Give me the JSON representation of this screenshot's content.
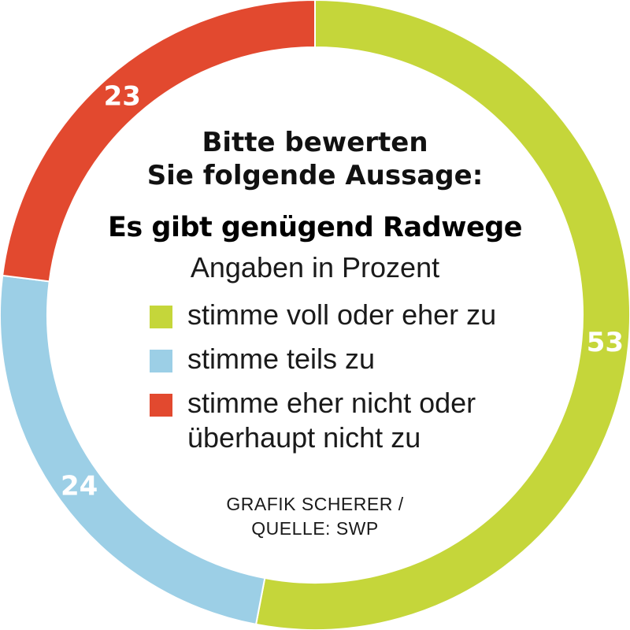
{
  "chart_data": {
    "type": "pie",
    "style": "donut",
    "title_lines": [
      "Bitte bewerten",
      "Sie folgende Aussage:"
    ],
    "subtitle": "Es gibt genügend Radwege",
    "unit_note": "Angaben in Prozent",
    "categories": [
      "stimme voll oder eher zu",
      "stimme teils zu",
      "stimme eher nicht oder überhaupt nicht zu"
    ],
    "values": [
      53,
      24,
      23
    ],
    "value_labels": [
      "53",
      "24",
      "23"
    ],
    "colors": [
      "#c5d63a",
      "#9ccfe6",
      "#e2492f"
    ],
    "legend": {
      "placement": "center",
      "entries": [
        {
          "lines": [
            "stimme voll oder eher zu"
          ],
          "color": "#c5d63a"
        },
        {
          "lines": [
            "stimme teils zu"
          ],
          "color": "#9ccfe6"
        },
        {
          "lines": [
            "stimme eher nicht oder",
            "überhaupt nicht zu"
          ],
          "color": "#e2492f"
        }
      ]
    },
    "credit_lines": [
      "GRAFIK SCHERER /",
      "QUELLE: SWP"
    ]
  }
}
